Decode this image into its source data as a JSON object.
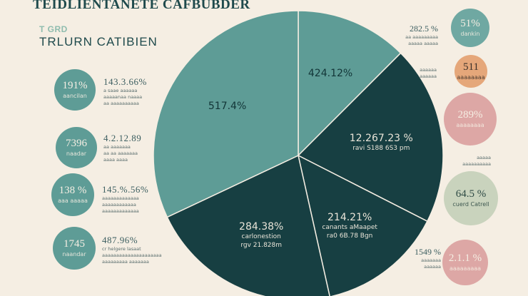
{
  "header": {
    "title": "TEIDLIENTANETE CAFBUBDER",
    "tag": "T GRD",
    "subtitle": "TRLURN CATIBIEN"
  },
  "colors": {
    "background": "#f5eee3",
    "teal": "#5e9c96",
    "dark_teal": "#173f42",
    "sage": "#c9d3bd",
    "pink": "#dda7a5",
    "peach": "#e5a77a",
    "text": "#1f4a4c"
  },
  "left_items": [
    {
      "bubble_value": "191%",
      "bubble_label": "aancilan",
      "value": "143.3.66%",
      "sub": [
        "a saae aaaaaa",
        "aaaaanaa naaaa",
        "aa aaaaaaaaaa"
      ]
    },
    {
      "bubble_value": "7396",
      "bubble_label": "naadar",
      "value": "4.2.12.89",
      "sub": [
        "aa aaaaaaa",
        "aa aa aaaaaaa",
        "aaaa aaaa"
      ]
    },
    {
      "bubble_value": "138 %",
      "bubble_label": "aaa aaaaa",
      "value": "145.%.56%",
      "sub": [
        "aaaaaaaaaaaaa",
        "aaaaaaaaaaaa",
        "aaaaaaaaaaaaa"
      ]
    },
    {
      "bubble_value": "1745",
      "bubble_label": "naandar",
      "value": "487.96%",
      "sub": [
        "cr helgere lasaat",
        "aaaaaaaaaaaaaaaaaaaaa",
        "aaaaaaaaa aaaaaaa"
      ]
    }
  ],
  "right_items": [
    {
      "bubble_value": "51%",
      "bubble_label": "dankin",
      "text_value": "282.5 %",
      "sub": [
        "aa aaaaaaaaa",
        "aaaaa aaaaa"
      ]
    },
    {
      "bubble_value": "511",
      "bubble_label": "aaaaaaaa",
      "text_value": "",
      "sub": [
        "aaaaaa",
        "aaaaaa"
      ]
    },
    {
      "bubble_value": "289%",
      "bubble_label": "aaaaaaaa",
      "text_value": "",
      "sub": []
    },
    {
      "bubble_value": "64.5 %",
      "bubble_label": "cuerd Catrell",
      "text_value": "",
      "sub": [
        "aaaaa",
        "aaaaaaaaaa"
      ]
    },
    {
      "bubble_value": "2.1.1 %",
      "bubble_label": "aaaaaaaaa",
      "text_value": "1549 %",
      "sub": [
        "aaaaaaa",
        "aaaaaa"
      ]
    }
  ],
  "chart_data": {
    "type": "pie",
    "slices": [
      {
        "value_label": "424.12%",
        "sub": "",
        "share": 0.125,
        "color": "#5e9c96"
      },
      {
        "value_label": "12.267.23 %",
        "sub": "ravi S188 6S3 pm",
        "share": 0.2,
        "color": "#173f42"
      },
      {
        "value_label": "214.21%",
        "sub": "canants aMaapet|ra0 6B.78 Bgn",
        "share": 0.14,
        "color": "#173f42"
      },
      {
        "value_label": "284.38%",
        "sub": "carlonestion|rgv 21.828m",
        "share": 0.215,
        "color": "#173f42"
      },
      {
        "value_label": "517.4%",
        "sub": "",
        "share": 0.32,
        "color": "#5e9c96"
      }
    ]
  }
}
